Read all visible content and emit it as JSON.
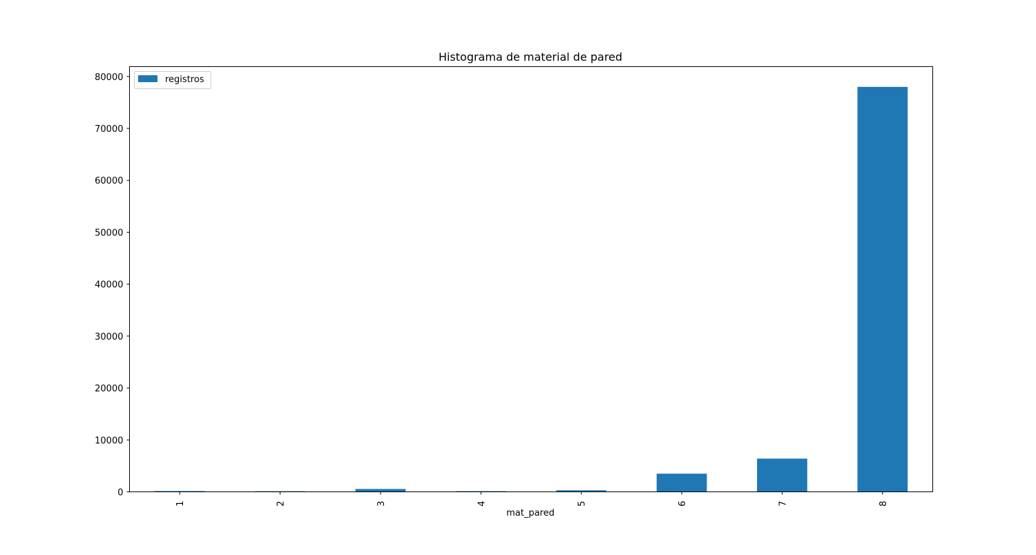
{
  "chart_data": {
    "type": "bar",
    "title": "Histograma de material de pared",
    "xlabel": "mat_pared",
    "ylabel": "",
    "categories": [
      "1",
      "2",
      "3",
      "4",
      "5",
      "6",
      "7",
      "8"
    ],
    "series": [
      {
        "name": "registros",
        "color": "#1f77b4",
        "values": [
          150,
          120,
          550,
          130,
          300,
          3500,
          6400,
          78000
        ]
      }
    ],
    "ylim": [
      0,
      81900
    ],
    "yticks": [
      0,
      10000,
      20000,
      30000,
      40000,
      50000,
      60000,
      70000,
      80000
    ],
    "xtick_rotation": "vertical",
    "legend_position": "top-left",
    "grid": false
  }
}
